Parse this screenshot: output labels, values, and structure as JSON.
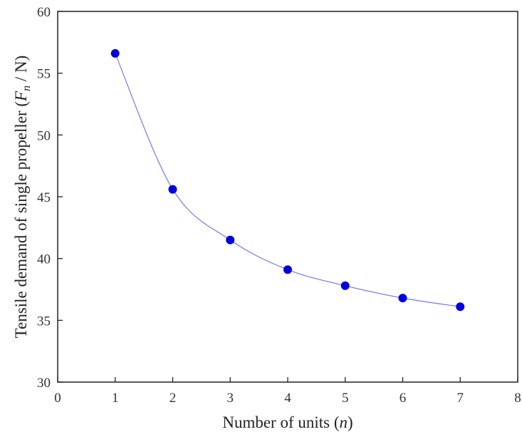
{
  "chart_data": {
    "type": "line",
    "title": "",
    "xlabel": {
      "prefix": "Number of units (",
      "symbol": "n",
      "suffix": ")"
    },
    "ylabel": {
      "prefix": "Tensile demand of single propeller (",
      "symbol": "F",
      "subscript": "n",
      "suffix": " / N)"
    },
    "xlim": [
      0,
      8
    ],
    "ylim": [
      30,
      60
    ],
    "xticks": [
      0,
      1,
      2,
      3,
      4,
      5,
      6,
      7,
      8
    ],
    "yticks": [
      30,
      35,
      40,
      45,
      50,
      55,
      60
    ],
    "grid": false,
    "series": [
      {
        "x": [
          1,
          2,
          3,
          4,
          5,
          6,
          7
        ],
        "values": [
          56.6,
          45.6,
          41.5,
          39.1,
          37.8,
          36.8,
          36.1
        ],
        "marker_color": "#0000dd",
        "line_color": "#7777ee"
      }
    ],
    "axis_color": "#222222"
  }
}
